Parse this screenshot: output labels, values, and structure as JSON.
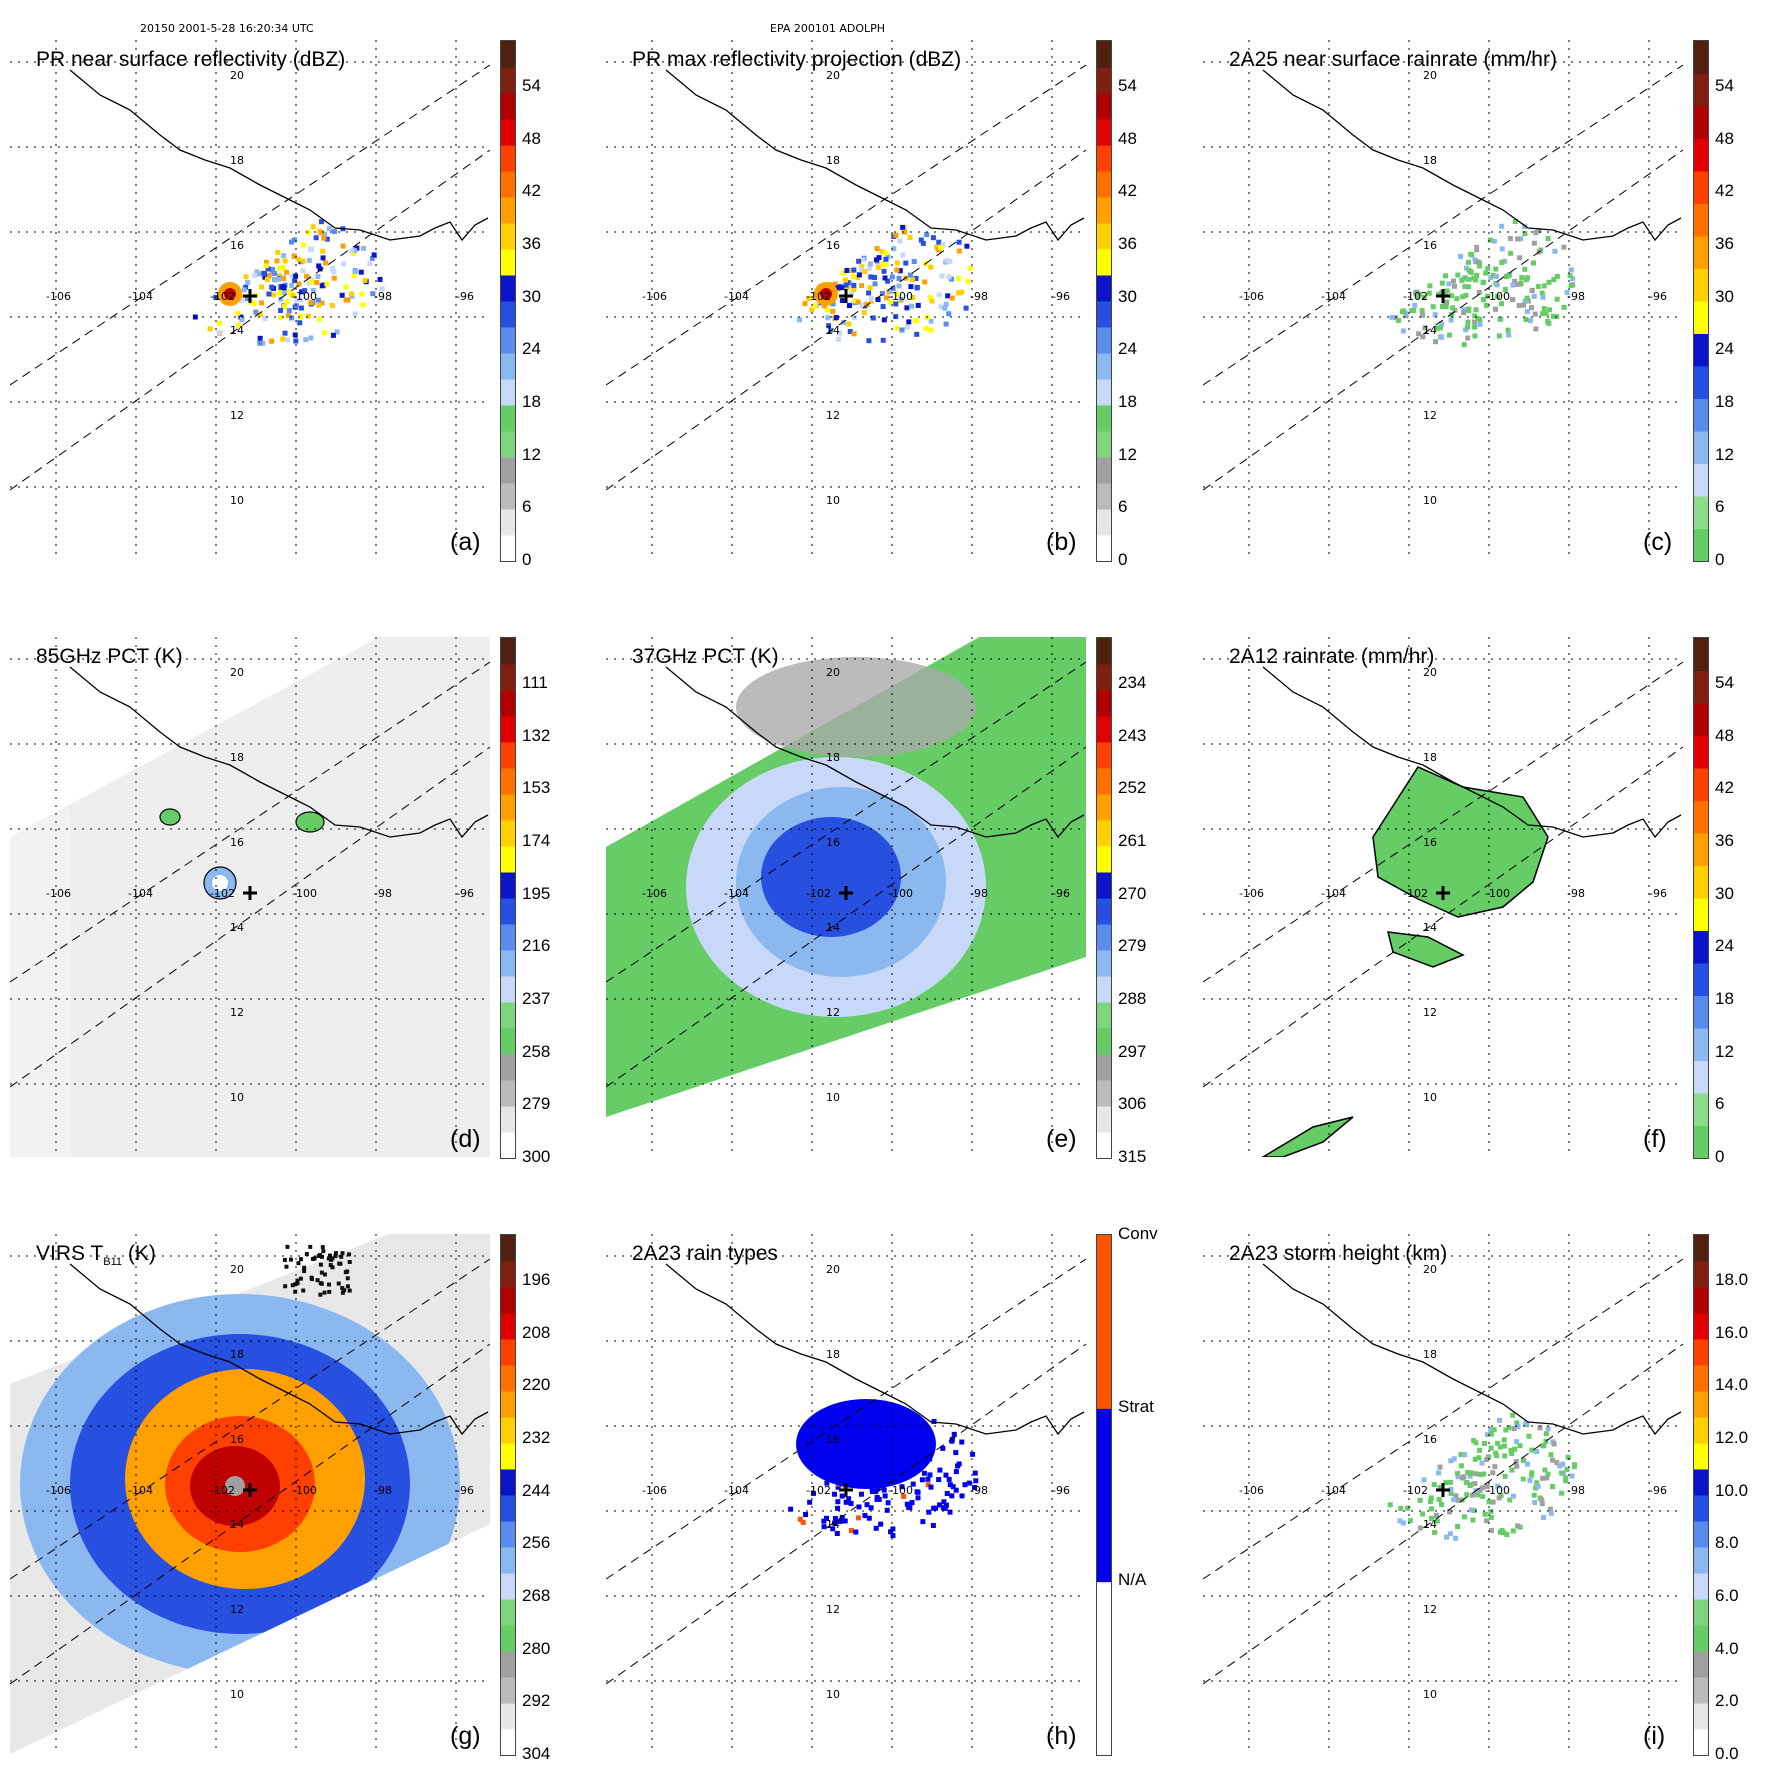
{
  "header": {
    "left": "20150 2001-5-28 16:20:34 UTC",
    "center": "EPA 200101 ADOLPH"
  },
  "geo": {
    "lon_labels": [
      "-106",
      "-104",
      "-102",
      "-100",
      "-98",
      "-96"
    ],
    "lat_labels": [
      "20",
      "18",
      "16",
      "14",
      "12",
      "10"
    ]
  },
  "panels": [
    {
      "id": "a",
      "title": "PR near surface reflectivity (dBZ)",
      "label": "(a)",
      "colors": "refl",
      "ticks": [
        "54",
        "48",
        "42",
        "36",
        "30",
        "24",
        "18",
        "12",
        "6",
        "0"
      ],
      "field": "pr"
    },
    {
      "id": "b",
      "title": "PR max reflectivity projection (dBZ)",
      "label": "(b)",
      "colors": "refl",
      "ticks": [
        "54",
        "48",
        "42",
        "36",
        "30",
        "24",
        "18",
        "12",
        "6",
        "0"
      ],
      "field": "prmax"
    },
    {
      "id": "c",
      "title": "2A25 near surface rainrate (mm/hr)",
      "label": "(c)",
      "colors": "rain",
      "ticks": [
        "54",
        "48",
        "42",
        "36",
        "30",
        "24",
        "18",
        "12",
        "6",
        "0"
      ],
      "field": "rain25"
    },
    {
      "id": "d",
      "title": "85GHz PCT (K)",
      "label": "(d)",
      "colors": "tb",
      "ticks": [
        "111",
        "132",
        "153",
        "174",
        "195",
        "216",
        "237",
        "258",
        "279",
        "300"
      ],
      "field": "pct85"
    },
    {
      "id": "e",
      "title": "37GHz PCT (K)",
      "label": "(e)",
      "colors": "tb",
      "ticks": [
        "234",
        "243",
        "252",
        "261",
        "270",
        "279",
        "288",
        "297",
        "306",
        "315"
      ],
      "field": "pct37"
    },
    {
      "id": "f",
      "title": "2A12 rainrate (mm/hr)",
      "label": "(f)",
      "colors": "rain",
      "ticks": [
        "54",
        "48",
        "42",
        "36",
        "30",
        "24",
        "18",
        "12",
        "6",
        "0"
      ],
      "field": "rain12"
    },
    {
      "id": "g",
      "title": "VIRS T",
      "title_sub": "B11",
      "title_tail": " (K)",
      "label": "(g)",
      "colors": "tb",
      "ticks": [
        "196",
        "208",
        "220",
        "232",
        "244",
        "256",
        "268",
        "280",
        "292",
        "304"
      ],
      "field": "virs"
    },
    {
      "id": "h",
      "title": "2A23 rain types",
      "label": "(h)",
      "colors": "types",
      "ticks": [
        "Conv",
        "Strat",
        "N/A"
      ],
      "field": "types"
    },
    {
      "id": "i",
      "title": "2A23 storm height (km)",
      "label": "(i)",
      "colors": "height",
      "ticks": [
        "18.0",
        "16.0",
        "14.0",
        "12.0",
        "10.0",
        "8.0",
        "6.0",
        "4.0",
        "2.0",
        "0.0"
      ],
      "field": "height"
    }
  ],
  "palettes": {
    "refl": [
      "#ffffff",
      "#e6e6e6",
      "#bbbbbb",
      "#a0a0a0",
      "#7fd47f",
      "#66cc66",
      "#c8d8f8",
      "#8cb8f0",
      "#5a8cf0",
      "#2850e0",
      "#0a14c8",
      "#ffff00",
      "#ffd000",
      "#ffa000",
      "#ff7000",
      "#ff4000",
      "#e00000",
      "#b00000",
      "#802010",
      "#502010"
    ],
    "rain": [
      "#66cc66",
      "#8cdc8c",
      "#c8d8f8",
      "#8cb8f0",
      "#5a8cf0",
      "#2850e0",
      "#0a14c8",
      "#ffff00",
      "#ffd000",
      "#ffa000",
      "#ff7000",
      "#ff4000",
      "#e00000",
      "#b00000",
      "#802010",
      "#502010"
    ],
    "tb": [
      "#ffffff",
      "#e6e6e6",
      "#bbbbbb",
      "#a0a0a0",
      "#66cc66",
      "#7fd47f",
      "#c8d8f8",
      "#8cb8f0",
      "#5a8cf0",
      "#2850e0",
      "#0a14c8",
      "#ffff00",
      "#ffd000",
      "#ffa000",
      "#ff7000",
      "#ff4000",
      "#e00000",
      "#b00000",
      "#802010",
      "#502010"
    ],
    "height": [
      "#ffffff",
      "#e6e6e6",
      "#bbbbbb",
      "#a0a0a0",
      "#66cc66",
      "#7fd47f",
      "#c8d8f8",
      "#8cb8f0",
      "#5a8cf0",
      "#2850e0",
      "#0a14c8",
      "#ffff00",
      "#ffd000",
      "#ffa000",
      "#ff7000",
      "#ff4000",
      "#e00000",
      "#b00000",
      "#802010",
      "#502010"
    ],
    "types": [
      "#ffffff",
      "#0000ee",
      "#ff5500"
    ]
  }
}
